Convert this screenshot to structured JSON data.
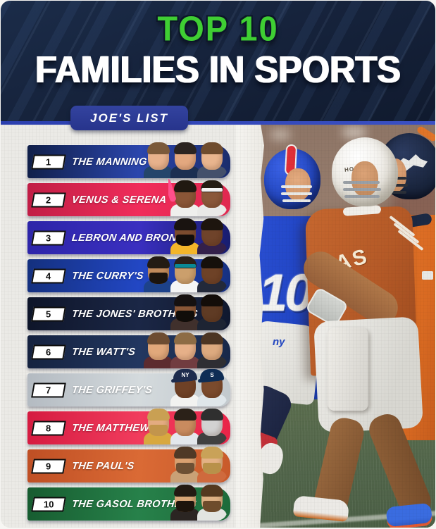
{
  "header": {
    "eyebrow": "TOP 10",
    "title": "FAMILIES IN SPORTS",
    "list_badge": "JOE'S LIST",
    "colors": {
      "bg": "#16233c",
      "eyebrow_green": "#3fce33",
      "title_white": "#ffffff",
      "badge_blue": "#2b3a9e",
      "underline_blue": "#2b3fae"
    }
  },
  "list": {
    "items": [
      {
        "rank": "1",
        "label": "THE MANNING'S",
        "text_color": "#ffffff",
        "colors": [
          "#101f48",
          "#2b46ad",
          "#1a2c6b"
        ],
        "faces": [
          {
            "skin": "#e7b28c",
            "hair": "#7b5a3a",
            "top": "#24456b"
          },
          {
            "skin": "#e3a87f",
            "hair": "#2b2420",
            "top": "#1c2f52"
          },
          {
            "skin": "#e9b58e",
            "hair": "#6f4c2e",
            "top": "#44506b"
          }
        ]
      },
      {
        "rank": "2",
        "label": "VENUS & SERENA",
        "text_color": "#ffffff",
        "colors": [
          "#c01e45",
          "#f02c5a",
          "#e02950"
        ],
        "faces": [
          {
            "skin": "#8a5637",
            "hair": "#201911",
            "top": "#efefed",
            "accent": "#ff4f8b"
          },
          {
            "skin": "#8a583a",
            "hair": "#241c13",
            "band": "#f2f2f2",
            "top": "#e9e9e7"
          }
        ]
      },
      {
        "rank": "3",
        "label": "LEBRON AND BRONNY",
        "text_color": "#ffffff",
        "colors": [
          "#2d25a8",
          "#3a2fc0",
          "#171d6e"
        ],
        "faces": [
          {
            "skin": "#7b4b2e",
            "hair": "#191310",
            "beard": "#120d0a",
            "top": "#f3b52a"
          },
          {
            "skin": "#6f432a",
            "hair": "#1d150e",
            "top": "#33204a"
          }
        ]
      },
      {
        "rank": "4",
        "label": "THE CURRY'S",
        "text_color": "#ffffff",
        "colors": [
          "#14307e",
          "#2247c4",
          "#16307f"
        ],
        "faces": [
          {
            "skin": "#c08a5b",
            "hair": "#231b13",
            "beard": "#1b140d",
            "top": "#1d428a"
          },
          {
            "skin": "#cb9f6c",
            "hair": "#2b2118",
            "band": "#0a8a96",
            "top": "#f5f5f5"
          },
          {
            "skin": "#6e4227",
            "hair": "#15100b",
            "top": "#23293a"
          }
        ]
      },
      {
        "rank": "5",
        "label": "THE JONES' BROTHERS",
        "text_color": "#ffffff",
        "colors": [
          "#0e1529",
          "#1b2746",
          "#10182e"
        ],
        "faces": [
          {
            "skin": "#8a5737",
            "hair": "#161110",
            "beard": "#110d0a",
            "top": "#40302c"
          },
          {
            "skin": "#5f3b24",
            "hair": "#130d09",
            "top": "#1d2433"
          }
        ]
      },
      {
        "rank": "6",
        "label": "THE WATT'S",
        "text_color": "#ffffff",
        "colors": [
          "#15223f",
          "#223760",
          "#182849"
        ],
        "faces": [
          {
            "skin": "#e1a87b",
            "hair": "#6d4c31",
            "top": "#5c2b2f"
          },
          {
            "skin": "#e6b089",
            "hair": "#8d6c45",
            "top": "#713c40"
          },
          {
            "skin": "#ddaa7f",
            "hair": "#4c3523",
            "top": "#2e2e33"
          }
        ]
      },
      {
        "rank": "7",
        "label": "THE GRIFFEY'S",
        "text_color": "#ffffff",
        "colors": [
          "#b3bac1",
          "#d4dadd",
          "#c2c9cd"
        ],
        "faces": [
          {
            "skin": "#6f4126",
            "hair": "#1b150f",
            "hat": "#1d2b4d",
            "hat_logo": "NY",
            "top": "#f2f2f0"
          },
          {
            "skin": "#7b4b2d",
            "hair": "#1b140e",
            "hat": "#0e2d55",
            "hat_logo": "S",
            "top": "#dfe6ea"
          }
        ]
      },
      {
        "rank": "8",
        "label": "THE MATTHEWS'",
        "text_color": "#ffffff",
        "colors": [
          "#d51b40",
          "#f13c5d",
          "#e82448"
        ],
        "faces": [
          {
            "skin": "#e3ab81",
            "hair": "#c9a053",
            "beard": "#c2954c",
            "top": "#d8a83f"
          },
          {
            "skin": "#c98b5f",
            "hair": "#2b2118",
            "top": "#e3e7ec"
          },
          {
            "skin": "#d2d2d2",
            "hair": "#2f2f2f",
            "top": "#404040"
          }
        ]
      },
      {
        "rank": "9",
        "label": "THE PAUL'S",
        "text_color": "#ffffff",
        "colors": [
          "#bf4f24",
          "#da6a35",
          "#c85a2b"
        ],
        "faces": [
          {
            "skin": "#d9a171",
            "hair": "#4f3926",
            "beard": "#6d5034",
            "top": "#c9a176"
          },
          {
            "skin": "#e3b285",
            "hair": "#c9a258",
            "beard": "#b8914a",
            "top": "#cf6a3d"
          }
        ]
      },
      {
        "rank": "10",
        "label": "THE GASOL BROTHERS",
        "text_color": "#ffffff",
        "colors": [
          "#175c30",
          "#27814a",
          "#1d6b3a"
        ],
        "faces": [
          {
            "skin": "#d8a677",
            "hair": "#241a12",
            "beard": "#1d140c",
            "top": "#2b2522"
          },
          {
            "skin": "#ddb184",
            "hair": "#54391f",
            "beard": "#6e4c2c",
            "top": "#e2e4e0"
          }
        ]
      }
    ]
  },
  "photo": {
    "eli_jersey_number": "10",
    "giants_pants_logo": "ny",
    "texas_helmet_text": "HORNS",
    "texas_jersey_text": "TEXAS"
  }
}
